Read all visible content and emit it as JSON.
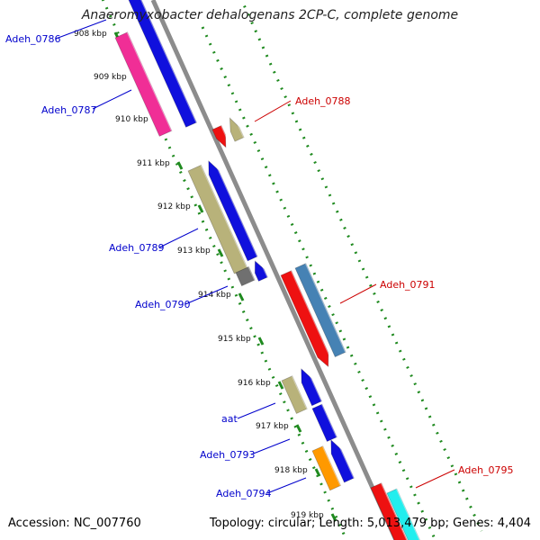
{
  "title": "Anaeromyxobacter dehalogenans 2CP-C, complete genome",
  "footer": {
    "accession": "Accession: NC_007760",
    "topology": "Topology: circular; Length: 5,013,479 bp; Genes: 4,404"
  },
  "colors": {
    "backbone": "#8c8c8c",
    "ticks": "#1f8a1f",
    "label_forward": "#0000cc",
    "label_reverse": "#cc0000"
  },
  "scale_labels": [
    "908 kbp",
    "909 kbp",
    "910 kbp",
    "911 kbp",
    "912 kbp",
    "913 kbp",
    "914 kbp",
    "915 kbp",
    "916 kbp",
    "917 kbp",
    "918 kbp",
    "919 kbp"
  ],
  "gene_labels": [
    {
      "text": "Adeh_0786",
      "strand": "forward"
    },
    {
      "text": "Adeh_0787",
      "strand": "forward"
    },
    {
      "text": "Adeh_0788",
      "strand": "reverse"
    },
    {
      "text": "Adeh_0789",
      "strand": "forward"
    },
    {
      "text": "Adeh_0790",
      "strand": "forward"
    },
    {
      "text": "Adeh_0791",
      "strand": "reverse"
    },
    {
      "text": "aat",
      "strand": "forward"
    },
    {
      "text": "Adeh_0793",
      "strand": "forward"
    },
    {
      "text": "Adeh_0794",
      "strand": "forward"
    },
    {
      "text": "Adeh_0795",
      "strand": "reverse"
    }
  ],
  "features": [
    {
      "name": "feature-pink-0787",
      "color": "#f02e96",
      "strand": "forward"
    },
    {
      "name": "feature-blue-0786",
      "color": "#1010dd",
      "strand": "forward"
    },
    {
      "name": "feature-red-small",
      "color": "#ee1111",
      "strand": "reverse"
    },
    {
      "name": "feature-khaki-0788",
      "color": "#b8b27a",
      "strand": "reverse"
    },
    {
      "name": "feature-khaki-0789",
      "color": "#b8b27a",
      "strand": "forward"
    },
    {
      "name": "feature-gray-0790",
      "color": "#707070",
      "strand": "forward"
    },
    {
      "name": "feature-blue-0789",
      "color": "#1010dd",
      "strand": "forward"
    },
    {
      "name": "feature-blue-small",
      "color": "#1010dd",
      "strand": "forward"
    },
    {
      "name": "feature-red-0791",
      "color": "#ee1111",
      "strand": "reverse"
    },
    {
      "name": "feature-steelblue-0791",
      "color": "#4682b4",
      "strand": "reverse"
    },
    {
      "name": "feature-khaki-aat",
      "color": "#b8b27a",
      "strand": "forward"
    },
    {
      "name": "feature-blue-aat",
      "color": "#1010dd",
      "strand": "forward"
    },
    {
      "name": "feature-blue-0793",
      "color": "#1010dd",
      "strand": "forward"
    },
    {
      "name": "feature-orange-0794",
      "color": "#ff9900",
      "strand": "forward"
    },
    {
      "name": "feature-blue-0794",
      "color": "#1010dd",
      "strand": "forward"
    },
    {
      "name": "feature-red-0795",
      "color": "#ee1111",
      "strand": "reverse"
    },
    {
      "name": "feature-cyan-0795",
      "color": "#22eeee",
      "strand": "reverse"
    }
  ]
}
